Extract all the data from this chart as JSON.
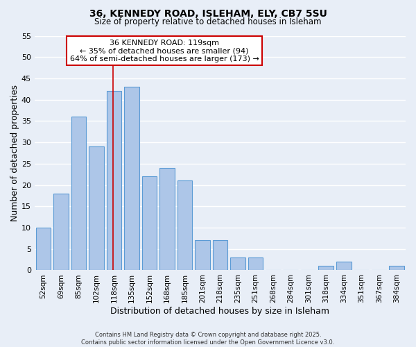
{
  "title": "36, KENNEDY ROAD, ISLEHAM, ELY, CB7 5SU",
  "subtitle": "Size of property relative to detached houses in Isleham",
  "xlabel": "Distribution of detached houses by size in Isleham",
  "ylabel": "Number of detached properties",
  "categories": [
    "52sqm",
    "69sqm",
    "85sqm",
    "102sqm",
    "118sqm",
    "135sqm",
    "152sqm",
    "168sqm",
    "185sqm",
    "201sqm",
    "218sqm",
    "235sqm",
    "251sqm",
    "268sqm",
    "284sqm",
    "301sqm",
    "318sqm",
    "334sqm",
    "351sqm",
    "367sqm",
    "384sqm"
  ],
  "values": [
    10,
    18,
    36,
    29,
    42,
    43,
    22,
    24,
    21,
    7,
    7,
    3,
    3,
    0,
    0,
    0,
    1,
    2,
    0,
    0,
    1
  ],
  "bar_color": "#adc6e8",
  "bar_edge_color": "#5b9bd5",
  "highlight_index": 4,
  "annotation_title": "36 KENNEDY ROAD: 119sqm",
  "annotation_line1": "← 35% of detached houses are smaller (94)",
  "annotation_line2": "64% of semi-detached houses are larger (173) →",
  "annotation_box_color": "#ffffff",
  "annotation_box_edge": "#cc0000",
  "vline_color": "#cc0000",
  "ylim": [
    0,
    55
  ],
  "yticks": [
    0,
    5,
    10,
    15,
    20,
    25,
    30,
    35,
    40,
    45,
    50,
    55
  ],
  "background_color": "#e8eef7",
  "grid_color": "#ffffff",
  "footer_line1": "Contains HM Land Registry data © Crown copyright and database right 2025.",
  "footer_line2": "Contains public sector information licensed under the Open Government Licence v3.0."
}
